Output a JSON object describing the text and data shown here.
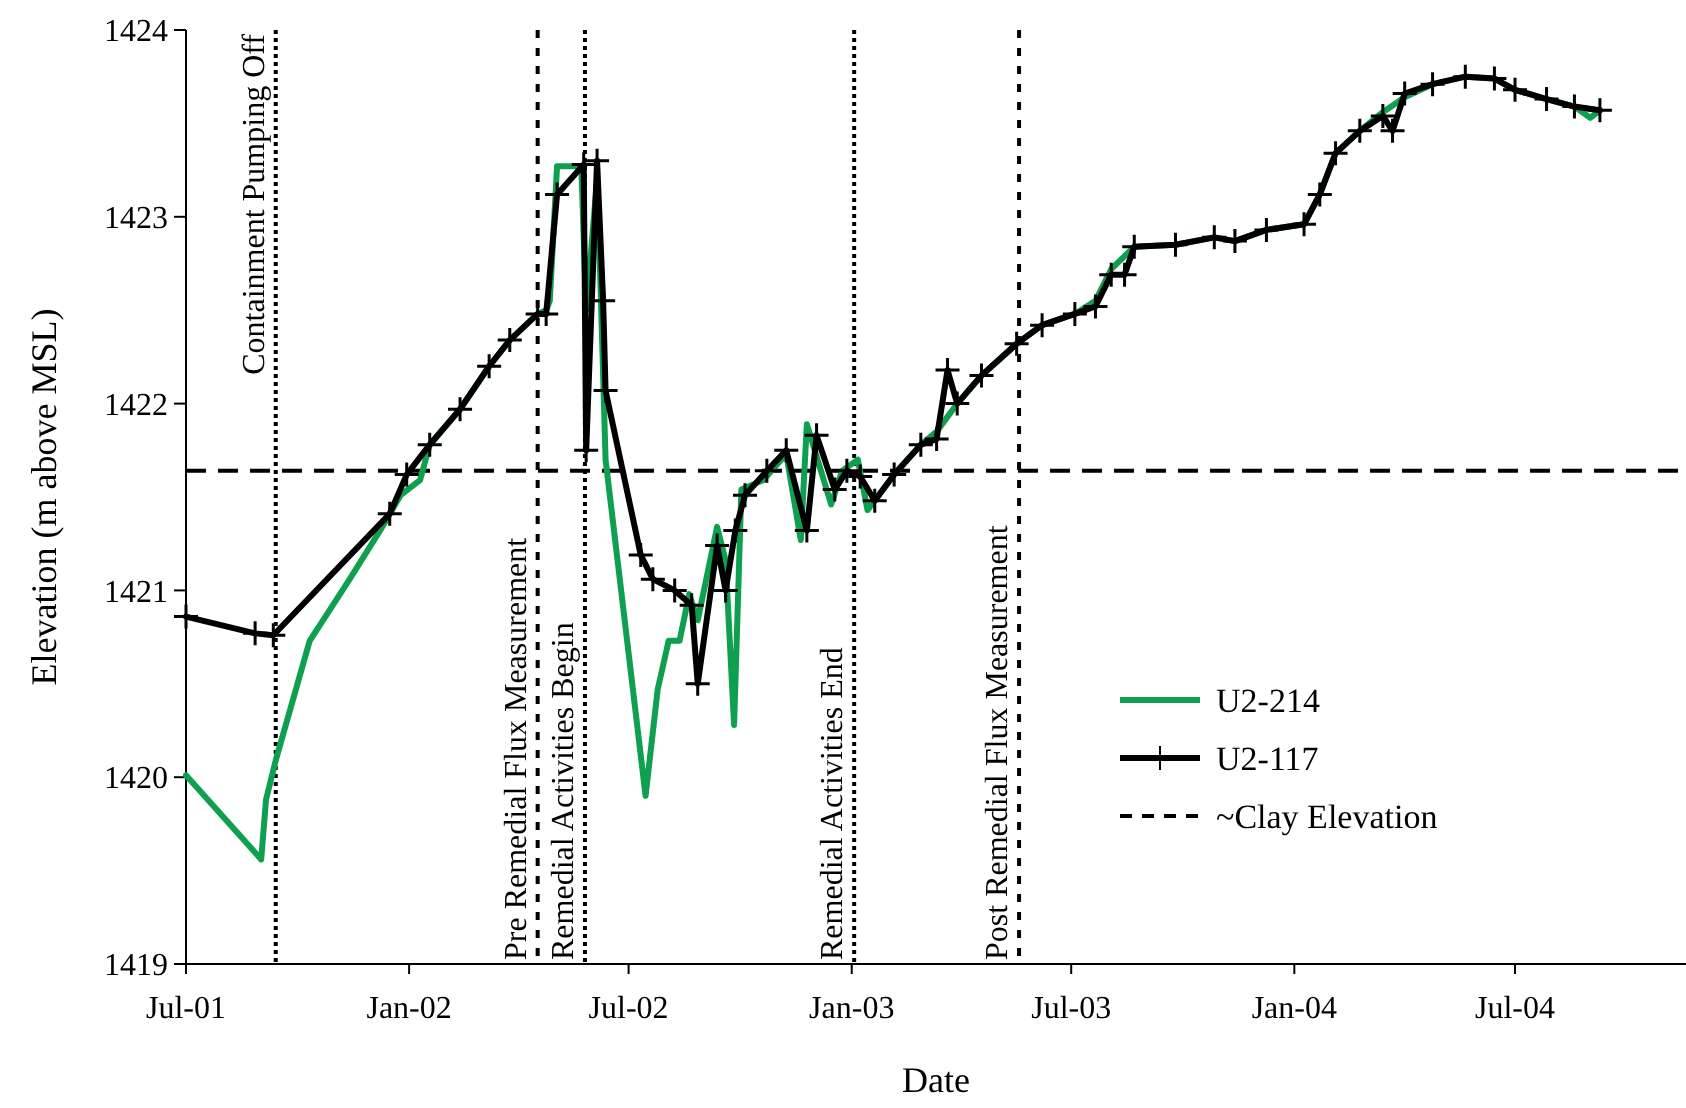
{
  "chart_data": {
    "type": "line",
    "xlabel": "Date",
    "ylabel": "Elevation (m above MSL)",
    "xlim": [
      "2001-07-01",
      "2004-11-19"
    ],
    "ylim": [
      1419,
      1424
    ],
    "yticks": [
      1419,
      1420,
      1421,
      1422,
      1423,
      1424
    ],
    "xticks": [
      {
        "value": "2001-07-01",
        "label": "Jul-01"
      },
      {
        "value": "2002-01-01",
        "label": "Jan-02"
      },
      {
        "value": "2002-07-01",
        "label": "Jul-02"
      },
      {
        "value": "2003-01-01",
        "label": "Jan-03"
      },
      {
        "value": "2003-07-01",
        "label": "Jul-03"
      },
      {
        "value": "2004-01-01",
        "label": "Jan-04"
      },
      {
        "value": "2004-07-01",
        "label": "Jul-04"
      }
    ],
    "grid": false,
    "legend": "right",
    "series": [
      {
        "name": "U2-214",
        "color": "#0ea04e",
        "marker": "none",
        "line_style": "solid",
        "x": [
          "2001-07-01",
          "2001-09-01",
          "2001-09-05",
          "2001-09-13",
          "2001-10-11",
          "2001-11-13",
          "2001-12-08",
          "2001-12-25",
          "2002-01-10",
          "2002-01-18",
          "2002-02-12",
          "2002-03-08",
          "2002-03-25",
          "2002-04-17",
          "2002-04-24",
          "2002-04-27",
          "2002-05-03",
          "2002-05-23",
          "2002-05-27",
          "2002-06-05",
          "2002-06-08",
          "2002-06-12",
          "2002-07-15",
          "2002-07-25",
          "2002-08-03",
          "2002-08-12",
          "2002-08-20",
          "2002-08-27",
          "2002-09-12",
          "2002-09-19",
          "2002-09-26",
          "2002-10-02",
          "2002-10-20",
          "2002-11-08",
          "2002-11-20",
          "2002-11-25",
          "2002-12-15",
          "2002-12-24",
          "2003-01-06",
          "2003-01-14",
          "2003-02-05",
          "2003-02-27",
          "2003-03-12",
          "2003-03-29",
          "2003-04-18",
          "2003-05-17",
          "2003-06-07",
          "2003-07-04",
          "2003-07-21",
          "2003-08-03",
          "2003-08-22",
          "2003-09-25",
          "2003-10-27",
          "2003-11-13",
          "2003-12-09",
          "2004-01-09",
          "2004-01-22",
          "2004-02-04",
          "2004-02-24",
          "2004-03-14",
          "2004-04-01",
          "2004-04-24",
          "2004-05-21",
          "2004-06-14",
          "2004-07-01",
          "2004-07-27",
          "2004-08-19",
          "2004-09-01",
          "2004-09-09"
        ],
        "values": [
          1420.01,
          1419.56,
          1419.88,
          1420.09,
          1420.73,
          1421.06,
          1421.32,
          1421.51,
          1421.59,
          1421.78,
          1421.97,
          1422.2,
          1422.34,
          1422.48,
          1422.5,
          1422.55,
          1423.27,
          1423.27,
          1422.5,
          1423.2,
          1422.6,
          1421.7,
          1419.9,
          1420.47,
          1420.73,
          1420.73,
          1420.98,
          1420.84,
          1421.34,
          1421.16,
          1420.28,
          1421.54,
          1421.59,
          1421.73,
          1421.27,
          1421.89,
          1421.46,
          1421.64,
          1421.7,
          1421.43,
          1421.62,
          1421.78,
          1421.85,
          1422.0,
          1422.15,
          1422.32,
          1422.42,
          1422.48,
          1422.55,
          1422.72,
          1422.84,
          1422.85,
          1422.89,
          1422.87,
          1422.93,
          1422.96,
          1423.12,
          1423.34,
          1423.46,
          1423.56,
          1423.64,
          1423.71,
          1423.75,
          1423.74,
          1423.68,
          1423.63,
          1423.59,
          1423.53,
          1423.57
        ]
      },
      {
        "name": "U2-117",
        "color": "#000000",
        "marker": "cross",
        "line_style": "solid",
        "x": [
          "2001-07-01",
          "2001-08-27",
          "2001-09-11",
          "2001-12-16",
          "2001-12-30",
          "2002-01-18",
          "2002-02-12",
          "2002-03-08",
          "2002-03-25",
          "2002-04-17",
          "2002-04-24",
          "2002-05-03",
          "2002-05-25",
          "2002-05-27",
          "2002-06-05",
          "2002-06-10",
          "2002-06-12",
          "2002-07-11",
          "2002-07-21",
          "2002-08-08",
          "2002-08-22",
          "2002-08-27",
          "2002-09-12",
          "2002-09-19",
          "2002-09-27",
          "2002-10-05",
          "2002-10-23",
          "2002-11-08",
          "2002-11-25",
          "2002-12-03",
          "2002-12-18",
          "2002-12-28",
          "2003-01-08",
          "2003-01-20",
          "2003-02-05",
          "2003-02-27",
          "2003-03-12",
          "2003-03-21",
          "2003-03-29",
          "2003-04-18",
          "2003-05-17",
          "2003-06-07",
          "2003-07-04",
          "2003-07-21",
          "2003-08-03",
          "2003-08-14",
          "2003-08-22",
          "2003-09-25",
          "2003-10-27",
          "2003-11-13",
          "2003-12-09",
          "2004-01-09",
          "2004-01-22",
          "2004-02-04",
          "2004-02-24",
          "2004-03-14",
          "2004-03-22",
          "2004-04-01",
          "2004-04-24",
          "2004-05-21",
          "2004-06-14",
          "2004-07-01",
          "2004-07-27",
          "2004-08-19",
          "2004-09-09"
        ],
        "values": [
          1420.86,
          1420.77,
          1420.76,
          1421.41,
          1421.62,
          1421.78,
          1421.97,
          1422.2,
          1422.34,
          1422.48,
          1422.48,
          1423.12,
          1423.28,
          1421.75,
          1423.3,
          1422.55,
          1422.07,
          1421.19,
          1421.06,
          1421.0,
          1420.92,
          1420.5,
          1421.24,
          1421.0,
          1421.32,
          1421.51,
          1421.64,
          1421.75,
          1421.32,
          1421.83,
          1421.54,
          1421.64,
          1421.61,
          1421.48,
          1421.62,
          1421.78,
          1421.81,
          1422.18,
          1422.0,
          1422.15,
          1422.32,
          1422.42,
          1422.48,
          1422.52,
          1422.69,
          1422.69,
          1422.84,
          1422.85,
          1422.89,
          1422.87,
          1422.93,
          1422.96,
          1423.12,
          1423.34,
          1423.46,
          1423.54,
          1423.46,
          1423.66,
          1423.71,
          1423.75,
          1423.74,
          1423.68,
          1423.63,
          1423.59,
          1423.57
        ]
      }
    ],
    "ref_lines": [
      {
        "axis": "y",
        "value": 1421.64,
        "label": "~Clay Elevation",
        "color": "#000000",
        "line_style": "dashed"
      },
      {
        "axis": "x",
        "value": "2001-09-13",
        "label": "Containment Pumping Off",
        "color": "#000000",
        "line_style": "dotted"
      },
      {
        "axis": "x",
        "value": "2002-04-17",
        "label": "Pre Remedial Flux Measurement",
        "color": "#000000",
        "line_style": "dashed"
      },
      {
        "axis": "x",
        "value": "2002-05-26",
        "label": "Remedial Activities Begin",
        "color": "#000000",
        "line_style": "dotted"
      },
      {
        "axis": "x",
        "value": "2003-01-03",
        "label": "Remedial Activities End",
        "color": "#000000",
        "line_style": "dotted"
      },
      {
        "axis": "x",
        "value": "2003-05-19",
        "label": "Post Remedial Flux Measurement",
        "color": "#000000",
        "line_style": "dashed"
      }
    ]
  }
}
